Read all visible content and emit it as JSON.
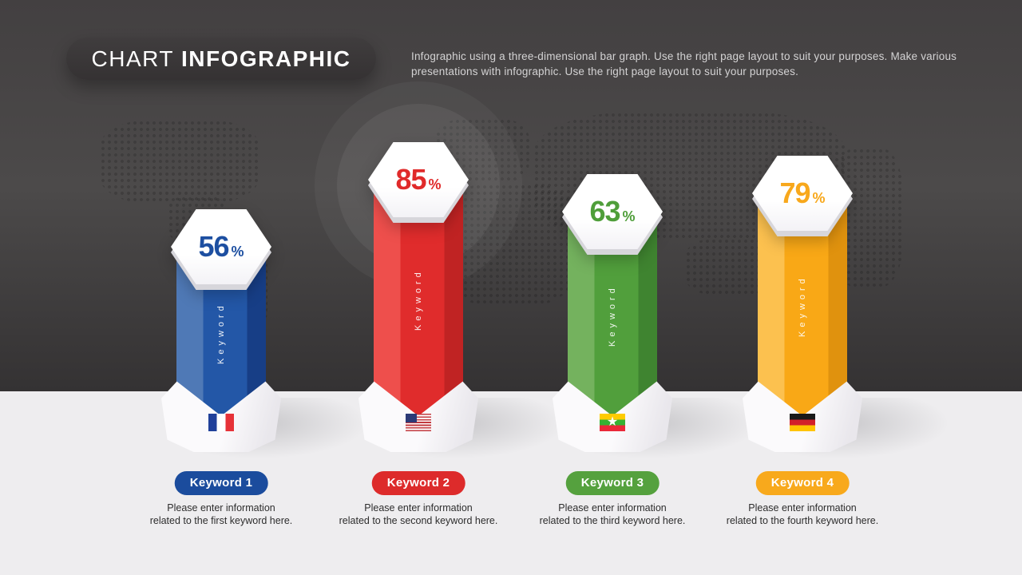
{
  "header": {
    "badge_title_regular": "CHART",
    "badge_title_bold": "INFOGRAPHIC",
    "description": "Infographic using a three-dimensional bar graph. Use the right page layout to suit your purposes. Make various presentations with infographic. Use the right page layout to suit your purposes."
  },
  "chart_data": {
    "type": "bar",
    "title": "Chart Infographic",
    "categories": [
      "Keyword 1",
      "Keyword 2",
      "Keyword 3",
      "Keyword 4"
    ],
    "values": [
      56,
      85,
      63,
      79
    ],
    "unit": "%",
    "ylim": [
      0,
      100
    ],
    "grid": false,
    "legend_position": "none",
    "series_colors": [
      "#1d4fa1",
      "#e02c2c",
      "#4f9e3a",
      "#f8a81c"
    ],
    "flags": [
      "france",
      "united-states",
      "myanmar",
      "germany"
    ],
    "bar_face_label": "Keyword"
  },
  "columns": [
    {
      "value": "56",
      "unit": "%",
      "bar_text": "Keyword",
      "label": "Keyword 1",
      "desc1": "Please enter information",
      "desc2": "related to the first keyword here.",
      "flag": "flag-france",
      "color": "#1d4fa1"
    },
    {
      "value": "85",
      "unit": "%",
      "bar_text": "Keyword",
      "label": "Keyword 2",
      "desc1": "Please enter information",
      "desc2": "related to the second keyword here.",
      "flag": "flag-united-states",
      "color": "#e02c2c"
    },
    {
      "value": "63",
      "unit": "%",
      "bar_text": "Keyword",
      "label": "Keyword 3",
      "desc1": "Please enter information",
      "desc2": "related to the third keyword here.",
      "flag": "flag-myanmar",
      "color": "#4f9e3a"
    },
    {
      "value": "79",
      "unit": "%",
      "bar_text": "Keyword",
      "label": "Keyword 4",
      "desc1": "Please enter information",
      "desc2": "related to the fourth keyword here.",
      "flag": "flag-germany",
      "color": "#f8a81c"
    }
  ]
}
